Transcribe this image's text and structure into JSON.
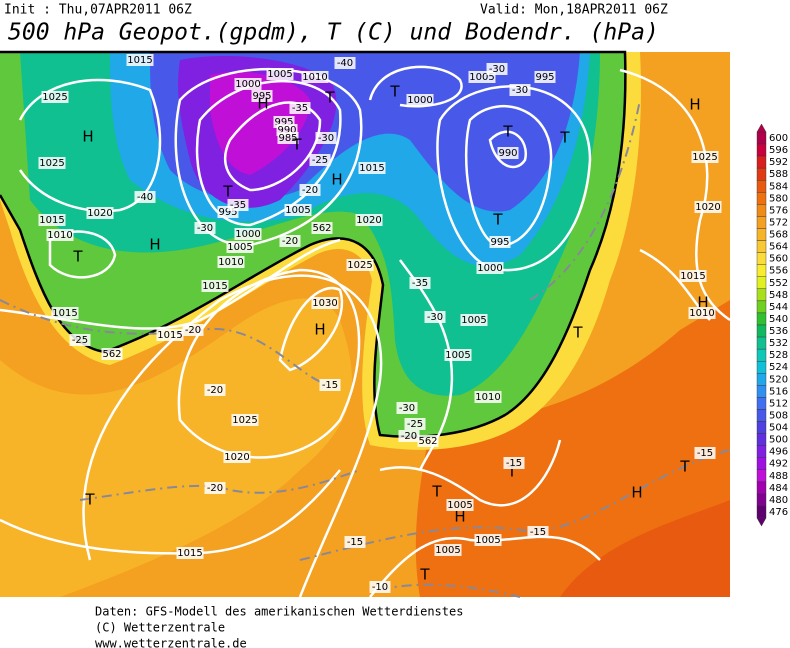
{
  "header": {
    "init": "Init : Thu,07APR2011 06Z",
    "valid": "Valid: Mon,18APR2011 06Z",
    "title": "500 hPa Geopot.(gpdm), T (C) und Bodendr. (hPa)"
  },
  "colorbar": {
    "levels": [
      600,
      596,
      592,
      588,
      584,
      580,
      576,
      572,
      568,
      564,
      560,
      556,
      552,
      548,
      544,
      540,
      536,
      532,
      528,
      524,
      520,
      516,
      512,
      508,
      504,
      500,
      496,
      492,
      488,
      484,
      480,
      476
    ],
    "colors": [
      "#b0004a",
      "#c8003c",
      "#d81e1e",
      "#e03a14",
      "#e85a10",
      "#ee7010",
      "#f08a18",
      "#f4a020",
      "#f8b428",
      "#fac832",
      "#fcdc3c",
      "#f8ec30",
      "#e0f020",
      "#a8e01c",
      "#70d020",
      "#30c030",
      "#10b860",
      "#10c090",
      "#10c8b8",
      "#10c0d8",
      "#20a8e8",
      "#3090f0",
      "#4070f0",
      "#4858e8",
      "#5040e0",
      "#6030e0",
      "#8020e0",
      "#a010e0",
      "#c010d8",
      "#a000b0",
      "#800090",
      "#600070"
    ]
  },
  "map": {
    "labels": [
      {
        "text": "1015"
      },
      {
        "text": "1025"
      },
      {
        "text": "H"
      },
      {
        "text": "1025"
      },
      {
        "text": "1020"
      },
      {
        "text": "1015"
      },
      {
        "text": "1010"
      },
      {
        "text": "T"
      },
      {
        "text": "H"
      },
      {
        "text": "1015"
      },
      {
        "text": "1015"
      },
      {
        "text": "-25"
      },
      {
        "text": "1015"
      },
      {
        "text": "-20"
      },
      {
        "text": "562"
      },
      {
        "text": "1030"
      },
      {
        "text": "H"
      },
      {
        "text": "1025"
      },
      {
        "text": "-20"
      },
      {
        "text": "-15"
      },
      {
        "text": "1025"
      },
      {
        "text": "1020"
      },
      {
        "text": "-20"
      },
      {
        "text": "T"
      },
      {
        "text": "1015"
      },
      {
        "text": "-15"
      },
      {
        "text": "-10"
      },
      {
        "text": "T"
      },
      {
        "text": "1005"
      },
      {
        "text": "H"
      },
      {
        "text": "T"
      },
      {
        "text": "1005"
      },
      {
        "text": "1005"
      },
      {
        "text": "-15"
      },
      {
        "text": "T"
      },
      {
        "text": "-15"
      },
      {
        "text": "H"
      },
      {
        "text": "T"
      },
      {
        "text": "-15"
      },
      {
        "text": "1010"
      },
      {
        "text": "-30"
      },
      {
        "text": "-25"
      },
      {
        "text": "-20"
      },
      {
        "text": "562"
      },
      {
        "text": "1005"
      },
      {
        "text": "-30"
      },
      {
        "text": "1005"
      },
      {
        "text": "T"
      },
      {
        "text": "1015"
      },
      {
        "text": "H"
      },
      {
        "text": "1010"
      },
      {
        "text": "1000"
      },
      {
        "text": "995"
      },
      {
        "text": "T"
      },
      {
        "text": "990"
      },
      {
        "text": "T"
      },
      {
        "text": "T"
      },
      {
        "text": "1005"
      },
      {
        "text": "-30"
      },
      {
        "text": "995"
      },
      {
        "text": "-30"
      },
      {
        "text": "1000"
      },
      {
        "text": "T"
      },
      {
        "text": "-40"
      },
      {
        "text": "1010"
      },
      {
        "text": "1005"
      },
      {
        "text": "1000"
      },
      {
        "text": "995"
      },
      {
        "text": "H"
      },
      {
        "text": "-35"
      },
      {
        "text": "T"
      },
      {
        "text": "995"
      },
      {
        "text": "990"
      },
      {
        "text": "985"
      },
      {
        "text": "T"
      },
      {
        "text": "-30"
      },
      {
        "text": "-25"
      },
      {
        "text": "H"
      },
      {
        "text": "1015"
      },
      {
        "text": "-20"
      },
      {
        "text": "T"
      },
      {
        "text": "995"
      },
      {
        "text": "-35"
      },
      {
        "text": "-30"
      },
      {
        "text": "1000"
      },
      {
        "text": "1005"
      },
      {
        "text": "1010"
      },
      {
        "text": "1005"
      },
      {
        "text": "1020"
      },
      {
        "text": "-20"
      },
      {
        "text": "562"
      },
      {
        "text": "H"
      },
      {
        "text": "1025"
      },
      {
        "text": "1020"
      },
      {
        "text": "-40"
      },
      {
        "text": "-35"
      }
    ]
  },
  "footer": {
    "line1": "Daten: GFS-Modell des amerikanischen Wetterdienstes",
    "line2": "(C) Wetterzentrale",
    "line3": "www.wetterzentrale.de"
  }
}
